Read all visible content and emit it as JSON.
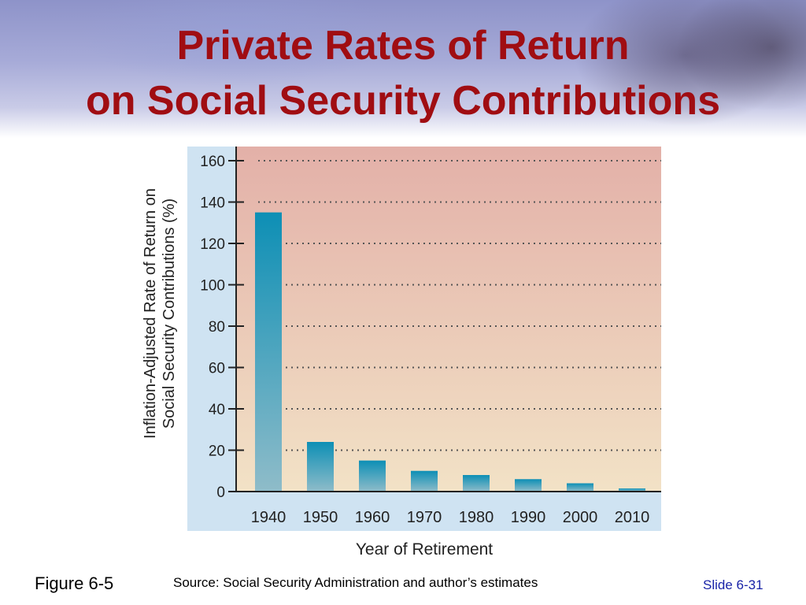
{
  "slide": {
    "title_line1": "Private Rates of Return",
    "title_line2": "on Social Security Contributions",
    "figure_label": "Figure 6-5",
    "source": "Source: Social Security Administration and author’s estimates",
    "slide_number": "Slide 6-31"
  },
  "colors": {
    "title": "#a00d12",
    "bar_top": "#0d8fb5",
    "bar_bottom": "#8fbcc9",
    "plot_top": "#e3b0a8",
    "plot_bottom": "#f2e2c6",
    "frame": "#cfe3f2",
    "slide_number": "#1a24a8"
  },
  "chart_data": {
    "type": "bar",
    "categories": [
      "1940",
      "1950",
      "1960",
      "1970",
      "1980",
      "1990",
      "2000",
      "2010"
    ],
    "values": [
      135,
      24,
      15,
      10,
      8,
      6,
      4,
      1.5
    ],
    "ylabel_line1": "Inflation-Adjusted Rate of Return on",
    "ylabel_line2": "Social Security Contributions (%)",
    "xlabel": "Year of Retirement",
    "ylim": [
      0,
      160
    ],
    "yticks": [
      "0",
      "20",
      "40",
      "60",
      "80",
      "100",
      "120",
      "140",
      "160"
    ],
    "grid": "dotted horizontal",
    "legend": "none"
  }
}
